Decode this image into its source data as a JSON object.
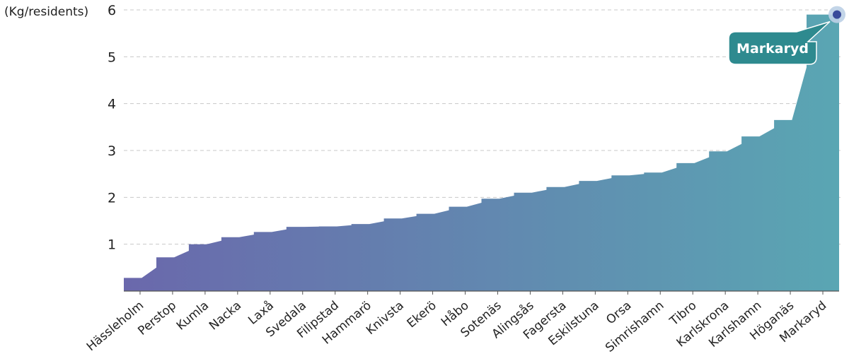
{
  "chart_data": {
    "type": "area",
    "y_unit_label": "(Kg/residents)",
    "ylim": [
      0,
      6
    ],
    "y_ticks": [
      1,
      2,
      3,
      4,
      5,
      6
    ],
    "grid": "horizontal dashed",
    "x_tick_labels": [
      "Hässleholm",
      "Perstop",
      "Kumla",
      "Nacka",
      "Laxå",
      "Svedala",
      "Filipstad",
      "Hammarö",
      "Knivsta",
      "Ekerö",
      "Håbo",
      "Sotenäs",
      "Alingsås",
      "Fagersta",
      "Eskilstuna",
      "Orsa",
      "Simrishamn",
      "Tibro",
      "Karlskrona",
      "Karlshamn",
      "Höganäs",
      "Markaryd"
    ],
    "x": [
      "Hässleholm",
      "Perstop",
      "Kumla",
      "Nacka",
      "Laxå",
      "Svedala",
      "Filipstad",
      "Hammarö",
      "Knivsta",
      "Ekerö",
      "Håbo",
      "Sotenäs",
      "Alingsås",
      "Fagersta",
      "Eskilstuna",
      "Orsa",
      "Simrishamn",
      "Tibro",
      "Karlskrona",
      "Karlshamn",
      "Höganäs",
      "Markaryd"
    ],
    "values": [
      0.28,
      0.72,
      1.0,
      1.15,
      1.26,
      1.37,
      1.38,
      1.43,
      1.55,
      1.65,
      1.8,
      1.97,
      2.1,
      2.22,
      2.35,
      2.47,
      2.53,
      2.73,
      2.98,
      3.3,
      3.65,
      5.9
    ],
    "colors": {
      "gradient_start": "#6a68ac",
      "gradient_end": "#5aa6b3",
      "marker": "#3a4b9a",
      "callout": "#2e8a8f"
    },
    "highlight": {
      "label": "Markaryd",
      "value": 5.9
    }
  }
}
